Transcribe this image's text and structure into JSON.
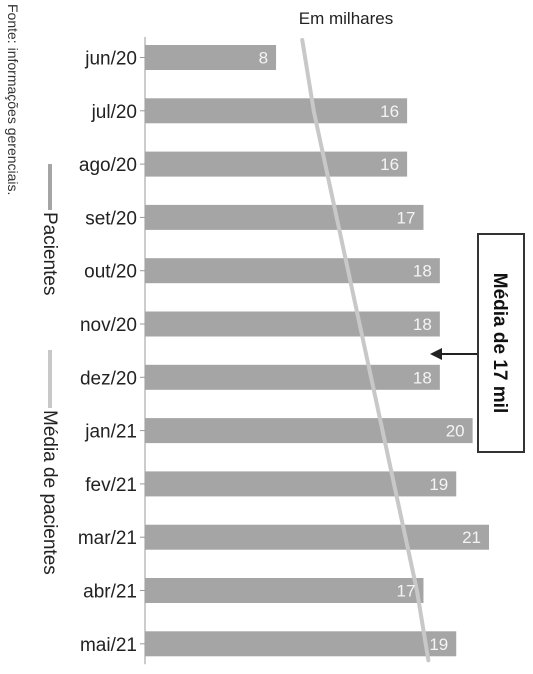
{
  "chart_data": {
    "type": "bar",
    "orientation": "horizontal",
    "unit_label": "Em milhares",
    "source": "Fonte: informações gerenciais.",
    "categories": [
      "jun/20",
      "jul/20",
      "ago/20",
      "set/20",
      "out/20",
      "nov/20",
      "dez/20",
      "jan/21",
      "fev/21",
      "mar/21",
      "abr/21",
      "mai/21"
    ],
    "series": [
      {
        "name": "Pacientes",
        "type": "bar",
        "values": [
          8,
          16,
          16,
          17,
          18,
          18,
          18,
          20,
          19,
          21,
          17,
          19
        ]
      },
      {
        "name": "Média de pacientes",
        "type": "line",
        "values": [
          9.6,
          10.3,
          11.0,
          11.7,
          12.4,
          13.1,
          13.8,
          14.5,
          15.2,
          15.9,
          16.6,
          17.3
        ]
      }
    ],
    "legend": [
      "Pacientes",
      "Média de pacientes"
    ],
    "legend_position": "left",
    "annotation": "Média de 17 mil",
    "xlim": [
      0,
      21
    ],
    "colors": {
      "bar": "#a5a5a5",
      "average_line": "#c8c8c8",
      "text": "#222222",
      "bar_label": "#f4f4f4"
    }
  }
}
